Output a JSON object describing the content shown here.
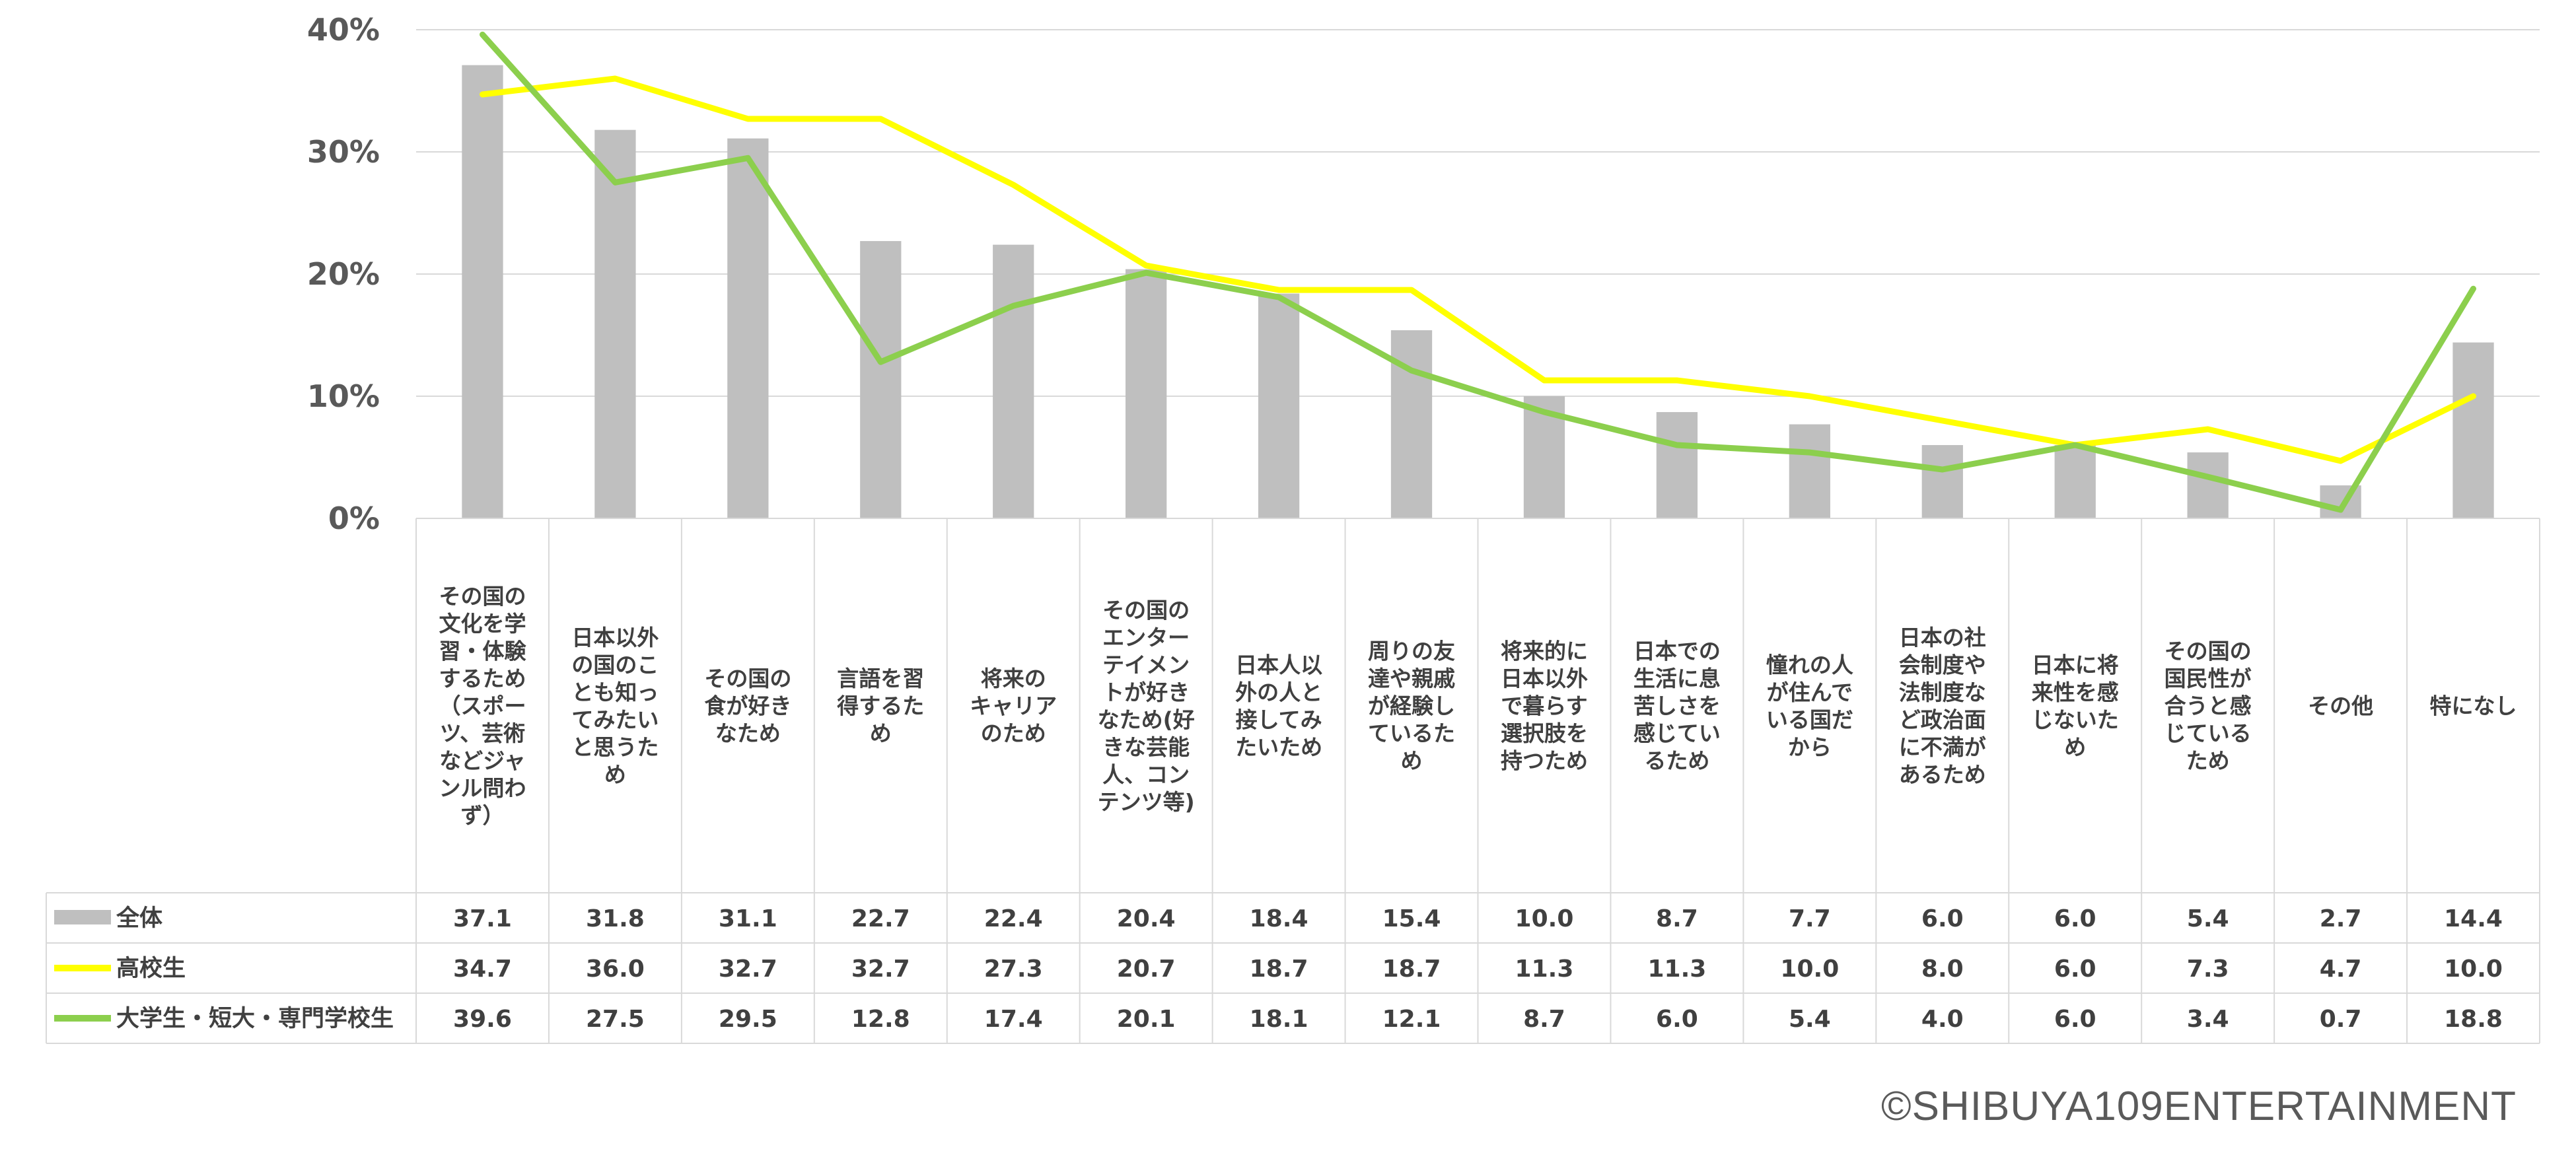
{
  "chart_data": {
    "type": "bar",
    "ylim": [
      0,
      40
    ],
    "yticks": [
      "0%",
      "10%",
      "20%",
      "30%",
      "40%"
    ],
    "grid": true,
    "categories": [
      [
        "その国の",
        "文化を学",
        "習・体験",
        "するため",
        "（スポー",
        "ツ、芸術",
        "などジャ",
        "ンル問わ",
        "ず）"
      ],
      [
        "日本以外",
        "の国のこ",
        "とも知っ",
        "てみたい",
        "と思うた",
        "め"
      ],
      [
        "その国の",
        "食が好き",
        "なため"
      ],
      [
        "言語を習",
        "得するた",
        "め"
      ],
      [
        "将来の",
        "キャリア",
        "のため"
      ],
      [
        "その国の",
        "エンター",
        "テイメン",
        "トが好き",
        "なため(好",
        "きな芸能",
        "人、コン",
        "テンツ等)"
      ],
      [
        "日本人以",
        "外の人と",
        "接してみ",
        "たいため"
      ],
      [
        "周りの友",
        "達や親戚",
        "が経験し",
        "ているた",
        "め"
      ],
      [
        "将来的に",
        "日本以外",
        "で暮らす",
        "選択肢を",
        "持つため"
      ],
      [
        "日本での",
        "生活に息",
        "苦しさを",
        "感じてい",
        "るため"
      ],
      [
        "憧れの人",
        "が住んで",
        "いる国だ",
        "から"
      ],
      [
        "日本の社",
        "会制度や",
        "法制度な",
        "ど政治面",
        "に不満が",
        "あるため"
      ],
      [
        "日本に将",
        "来性を感",
        "じないた",
        "め"
      ],
      [
        "その国の",
        "国民性が",
        "合うと感",
        "じている",
        "ため"
      ],
      [
        "その他"
      ],
      [
        "特になし"
      ]
    ],
    "series": [
      {
        "name": "全体",
        "kind": "bar",
        "color": "#bfbfbf",
        "values": [
          37.1,
          31.8,
          31.1,
          22.7,
          22.4,
          20.4,
          18.4,
          15.4,
          10.0,
          8.7,
          7.7,
          6.0,
          6.0,
          5.4,
          2.7,
          14.4
        ],
        "labels": [
          "37.1",
          "31.8",
          "31.1",
          "22.7",
          "22.4",
          "20.4",
          "18.4",
          "15.4",
          "10.0",
          "8.7",
          "7.7",
          "6.0",
          "6.0",
          "5.4",
          "2.7",
          "14.4"
        ]
      },
      {
        "name": "高校生",
        "kind": "line",
        "color": "#ffff00",
        "values": [
          34.7,
          36.0,
          32.7,
          32.7,
          27.3,
          20.7,
          18.7,
          18.7,
          11.3,
          11.3,
          10.0,
          8.0,
          6.0,
          7.3,
          4.7,
          10.0
        ],
        "labels": [
          "34.7",
          "36.0",
          "32.7",
          "32.7",
          "27.3",
          "20.7",
          "18.7",
          "18.7",
          "11.3",
          "11.3",
          "10.0",
          "8.0",
          "6.0",
          "7.3",
          "4.7",
          "10.0"
        ]
      },
      {
        "name": "大学生・短大・専門学校生",
        "kind": "line",
        "color": "#8ccf4d",
        "values": [
          39.6,
          27.5,
          29.5,
          12.8,
          17.4,
          20.1,
          18.1,
          12.1,
          8.7,
          6.0,
          5.4,
          4.0,
          6.0,
          3.4,
          0.7,
          18.8
        ],
        "labels": [
          "39.6",
          "27.5",
          "29.5",
          "12.8",
          "17.4",
          "20.1",
          "18.1",
          "12.1",
          "8.7",
          "6.0",
          "5.4",
          "4.0",
          "6.0",
          "3.4",
          "0.7",
          "18.8"
        ]
      }
    ]
  },
  "credit": "©SHIBUYA109ENTERTAINMENT"
}
